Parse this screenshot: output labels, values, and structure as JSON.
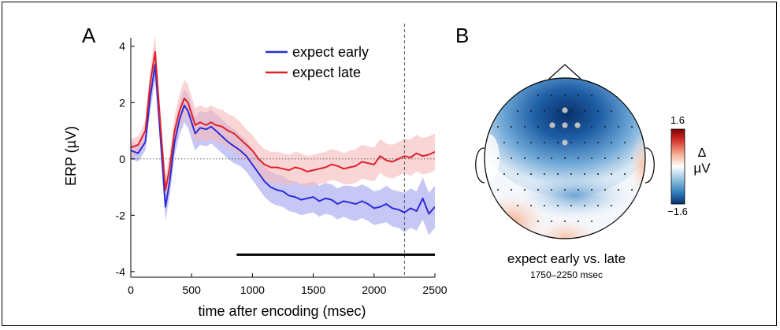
{
  "panel_a": {
    "label": "A",
    "xlabel": "time after encoding (msec)",
    "ylabel": "ERP (µV)"
  },
  "panel_b": {
    "label": "B",
    "title": "expect early vs. late",
    "subtitle": "1750–2250 msec",
    "colorbar": {
      "max_label": "1.6",
      "min_label": "−1.6",
      "unit_label_top": "Δ",
      "unit_label_bottom": "µV",
      "range": [
        -1.6,
        1.6
      ],
      "colors": [
        "#08306b",
        "#2f7ebc",
        "#c6dbef",
        "#ffffff",
        "#fcd5c0",
        "#e34a33",
        "#8b0000"
      ]
    }
  },
  "chart_data": [
    {
      "type": "line",
      "title": "",
      "xlabel": "time after encoding (msec)",
      "ylabel": "ERP (µV)",
      "xlim": [
        0,
        2500
      ],
      "ylim": [
        -4.2,
        4.3
      ],
      "xticks": [
        0,
        500,
        1000,
        1500,
        2000,
        2500
      ],
      "yticks": [
        -4,
        -2,
        0,
        2,
        4
      ],
      "legend_position": "top-right",
      "series": [
        {
          "name": "expect early",
          "color": "#2b2bd9",
          "band_color": "#b4b4f2",
          "x": [
            0,
            60,
            120,
            160,
            200,
            240,
            285,
            320,
            360,
            400,
            440,
            470,
            500,
            530,
            570,
            620,
            660,
            700,
            750,
            800,
            850,
            900,
            950,
            1000,
            1050,
            1100,
            1150,
            1200,
            1250,
            1300,
            1350,
            1400,
            1450,
            1500,
            1550,
            1600,
            1650,
            1700,
            1750,
            1800,
            1850,
            1900,
            1950,
            2000,
            2050,
            2100,
            2150,
            2200,
            2250,
            2300,
            2350,
            2400,
            2450,
            2500
          ],
          "values": [
            0.3,
            0.2,
            0.6,
            2.2,
            3.35,
            1.0,
            -1.7,
            -0.8,
            0.6,
            1.4,
            1.9,
            1.7,
            1.3,
            0.9,
            1.1,
            1.05,
            1.15,
            1.0,
            0.8,
            0.6,
            0.45,
            0.3,
            0.1,
            -0.2,
            -0.5,
            -0.8,
            -1.0,
            -1.1,
            -1.15,
            -1.3,
            -1.35,
            -1.45,
            -1.4,
            -1.35,
            -1.5,
            -1.4,
            -1.45,
            -1.6,
            -1.5,
            -1.55,
            -1.6,
            -1.5,
            -1.6,
            -1.75,
            -1.7,
            -1.6,
            -1.75,
            -1.8,
            -1.9,
            -1.75,
            -1.85,
            -1.4,
            -1.95,
            -1.7
          ],
          "ci_half_width": [
            0.3,
            0.3,
            0.3,
            0.5,
            0.6,
            0.5,
            0.5,
            0.5,
            0.5,
            0.55,
            0.6,
            0.6,
            0.6,
            0.6,
            0.6,
            0.6,
            0.6,
            0.6,
            0.6,
            0.6,
            0.6,
            0.55,
            0.55,
            0.55,
            0.55,
            0.55,
            0.55,
            0.55,
            0.55,
            0.55,
            0.55,
            0.55,
            0.55,
            0.55,
            0.55,
            0.55,
            0.55,
            0.55,
            0.55,
            0.6,
            0.6,
            0.6,
            0.6,
            0.6,
            0.6,
            0.65,
            0.65,
            0.65,
            0.7,
            0.7,
            0.7,
            0.75,
            0.75,
            0.75
          ]
        },
        {
          "name": "expect late",
          "color": "#e0202a",
          "band_color": "#f7b9b9",
          "x": [
            0,
            60,
            120,
            160,
            200,
            240,
            285,
            320,
            360,
            400,
            440,
            470,
            500,
            530,
            570,
            620,
            660,
            700,
            750,
            800,
            850,
            900,
            950,
            1000,
            1050,
            1100,
            1150,
            1200,
            1250,
            1300,
            1350,
            1400,
            1450,
            1500,
            1550,
            1600,
            1650,
            1700,
            1750,
            1800,
            1850,
            1900,
            1950,
            2000,
            2050,
            2100,
            2150,
            2200,
            2250,
            2300,
            2350,
            2400,
            2450,
            2500
          ],
          "values": [
            0.4,
            0.5,
            1.0,
            2.7,
            3.8,
            1.4,
            -1.1,
            -0.3,
            1.0,
            1.7,
            2.15,
            2.0,
            1.6,
            1.2,
            1.3,
            1.2,
            1.3,
            1.2,
            1.15,
            1.0,
            0.9,
            0.7,
            0.5,
            0.3,
            0.0,
            -0.2,
            -0.3,
            -0.3,
            -0.35,
            -0.4,
            -0.3,
            -0.35,
            -0.45,
            -0.4,
            -0.35,
            -0.3,
            -0.2,
            -0.25,
            -0.35,
            -0.3,
            -0.25,
            -0.1,
            -0.15,
            -0.2,
            0.1,
            -0.05,
            -0.1,
            0.0,
            0.1,
            0.05,
            0.2,
            0.1,
            0.15,
            0.25
          ],
          "ci_half_width": [
            0.3,
            0.3,
            0.35,
            0.5,
            0.6,
            0.5,
            0.5,
            0.5,
            0.55,
            0.6,
            0.65,
            0.65,
            0.6,
            0.6,
            0.6,
            0.6,
            0.6,
            0.6,
            0.6,
            0.6,
            0.6,
            0.6,
            0.55,
            0.55,
            0.55,
            0.55,
            0.55,
            0.55,
            0.55,
            0.55,
            0.55,
            0.55,
            0.55,
            0.55,
            0.55,
            0.55,
            0.55,
            0.55,
            0.55,
            0.6,
            0.6,
            0.6,
            0.6,
            0.6,
            0.6,
            0.6,
            0.6,
            0.6,
            0.6,
            0.65,
            0.65,
            0.65,
            0.65,
            0.65
          ]
        }
      ],
      "reference_lines": {
        "zero_line": 0,
        "vertical_dashed_x": 2250,
        "significance_bar": {
          "x_start": 870,
          "x_end": 2500,
          "y": -3.4
        }
      }
    },
    {
      "type": "heatmap",
      "title": "expect early vs. late",
      "subtitle": "1750–2250 msec",
      "value_range": [
        -1.6,
        1.6
      ],
      "description_of_map": "scalp topography: strong negative (blue) over central/frontal electrodes, near zero laterally, slight positive (red) at left-bottom, bottom-center and right edge",
      "highlighted_electrodes": 5
    }
  ]
}
